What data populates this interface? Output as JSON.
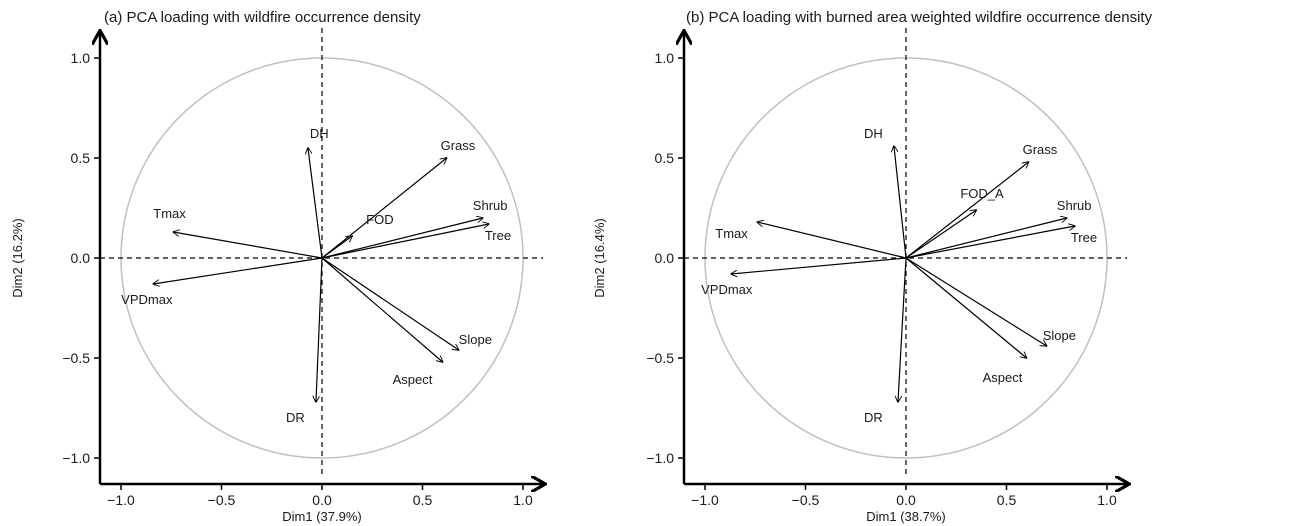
{
  "chart_data": [
    {
      "type": "scatter",
      "title": "(a) PCA loading with wildfire occurrence density",
      "xlabel": "Dim1 (37.9%)",
      "ylabel": "Dim2 (16.2%)",
      "xlim": [
        -1.1,
        1.1
      ],
      "ylim": [
        -1.1,
        1.1
      ],
      "xticks": [
        "−1.0",
        "−0.5",
        "0.0",
        "0.5",
        "1.0"
      ],
      "yticks": [
        "−1.0",
        "−0.5",
        "0.0",
        "0.5",
        "1.0"
      ],
      "circle_radius": 1.0,
      "colors": {
        "circle": "#c0c0c0",
        "arrow": "#000000"
      },
      "vectors": [
        {
          "name": "DH",
          "x": -0.07,
          "y": 0.55
        },
        {
          "name": "Grass",
          "x": 0.62,
          "y": 0.5
        },
        {
          "name": "Shrub",
          "x": 0.8,
          "y": 0.2
        },
        {
          "name": "Tree",
          "x": 0.83,
          "y": 0.17
        },
        {
          "name": "FOD",
          "x": 0.15,
          "y": 0.11
        },
        {
          "name": "Tmax",
          "x": -0.74,
          "y": 0.13
        },
        {
          "name": "VPDmax",
          "x": -0.84,
          "y": -0.13
        },
        {
          "name": "Slope",
          "x": 0.68,
          "y": -0.46
        },
        {
          "name": "Aspect",
          "x": 0.6,
          "y": -0.52
        },
        {
          "name": "DR",
          "x": -0.03,
          "y": -0.72
        }
      ]
    },
    {
      "type": "scatter",
      "title": "(b) PCA loading with burned area weighted wildfire occurrence density",
      "xlabel": "Dim1 (38.7%)",
      "ylabel": "Dim2 (16.4%)",
      "xlim": [
        -1.1,
        1.1
      ],
      "ylim": [
        -1.1,
        1.1
      ],
      "xticks": [
        "−1.0",
        "−0.5",
        "0.0",
        "0.5",
        "1.0"
      ],
      "yticks": [
        "−1.0",
        "−0.5",
        "0.0",
        "0.5",
        "1.0"
      ],
      "circle_radius": 1.0,
      "colors": {
        "circle": "#c0c0c0",
        "arrow": "#000000"
      },
      "vectors": [
        {
          "name": "DH",
          "x": -0.06,
          "y": 0.56
        },
        {
          "name": "Grass",
          "x": 0.61,
          "y": 0.48
        },
        {
          "name": "FOD_A",
          "x": 0.35,
          "y": 0.24
        },
        {
          "name": "Shrub",
          "x": 0.8,
          "y": 0.2
        },
        {
          "name": "Tree",
          "x": 0.84,
          "y": 0.16
        },
        {
          "name": "Tmax",
          "x": -0.74,
          "y": 0.18
        },
        {
          "name": "VPDmax",
          "x": -0.87,
          "y": -0.08
        },
        {
          "name": "Slope",
          "x": 0.7,
          "y": -0.44
        },
        {
          "name": "Aspect",
          "x": 0.6,
          "y": -0.5
        },
        {
          "name": "DR",
          "x": -0.04,
          "y": -0.72
        }
      ]
    }
  ]
}
